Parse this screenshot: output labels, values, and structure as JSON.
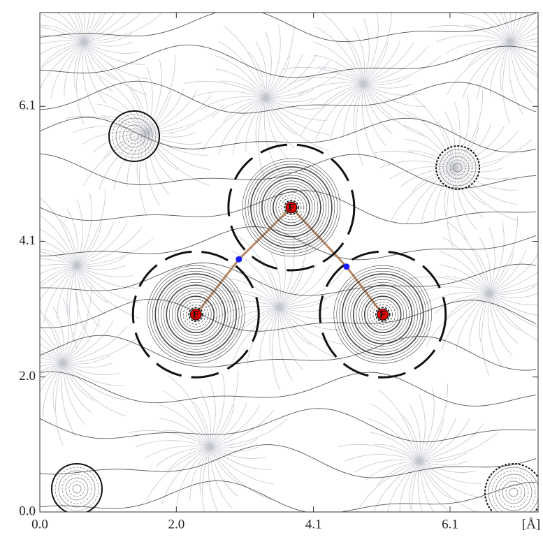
{
  "chart_data": {
    "type": "contour",
    "x_label": "[Å]",
    "xlim": [
      0,
      7.41
    ],
    "ylim": [
      0,
      7.51
    ],
    "xticks": [
      {
        "value": 0,
        "label": "0.0"
      },
      {
        "value": 2.03,
        "label": "2.0"
      },
      {
        "value": 4.07,
        "label": "4.1"
      },
      {
        "value": 6.1,
        "label": "6.1"
      }
    ],
    "yticks": [
      {
        "value": 0,
        "label": "0.0"
      },
      {
        "value": 2.03,
        "label": "2.0"
      },
      {
        "value": 4.07,
        "label": "4.1"
      },
      {
        "value": 6.1,
        "label": "6.1"
      }
    ],
    "atoms": {
      "labels": [
        "F",
        "F",
        "F"
      ],
      "x": [
        2.32,
        3.74,
        5.1
      ],
      "y": [
        2.97,
        4.58,
        2.97
      ],
      "color": "#e00000"
    },
    "critical_points": {
      "x": [
        2.96,
        4.56
      ],
      "y": [
        3.8,
        3.69
      ],
      "color": "#1a1aff"
    },
    "bond_color": "#b88560"
  }
}
